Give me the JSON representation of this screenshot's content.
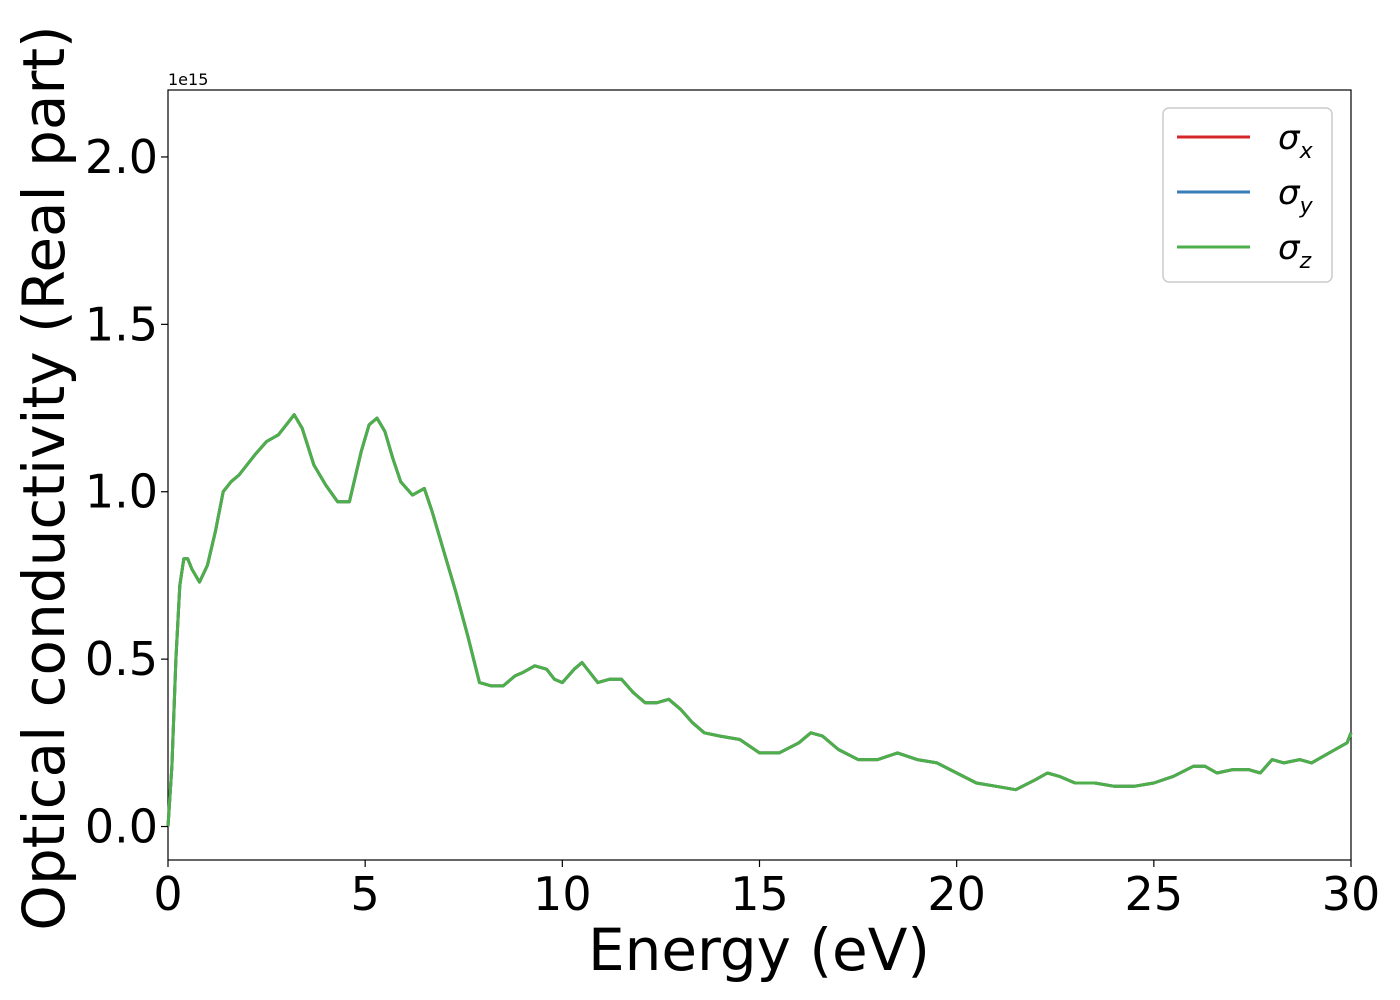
{
  "chart_data": {
    "type": "line",
    "title": "",
    "xlabel": "Energy (eV)",
    "ylabel": "Optical conductivity (Real part)",
    "y_offset_label": "1e15",
    "xlim": [
      0,
      30
    ],
    "ylim": [
      -0.1,
      2.2
    ],
    "x_ticks": [
      0,
      5,
      10,
      15,
      20,
      25,
      30
    ],
    "x_tick_labels": [
      "0",
      "5",
      "10",
      "15",
      "20",
      "25",
      "30"
    ],
    "y_ticks": [
      0.0,
      0.5,
      1.0,
      1.5,
      2.0
    ],
    "y_tick_labels": [
      "0.0",
      "0.5",
      "1.0",
      "1.5",
      "2.0"
    ],
    "grid": false,
    "legend_position": "top-right",
    "x": [
      0,
      0.1,
      0.2,
      0.3,
      0.4,
      0.5,
      0.6,
      0.8,
      1.0,
      1.2,
      1.4,
      1.6,
      1.8,
      2.0,
      2.2,
      2.5,
      2.8,
      3.0,
      3.2,
      3.4,
      3.7,
      4.0,
      4.3,
      4.6,
      4.9,
      5.1,
      5.3,
      5.5,
      5.7,
      5.9,
      6.2,
      6.5,
      6.7,
      7.0,
      7.3,
      7.6,
      7.9,
      8.2,
      8.5,
      8.8,
      9.0,
      9.3,
      9.6,
      9.8,
      10.0,
      10.3,
      10.5,
      10.7,
      10.9,
      11.2,
      11.5,
      11.8,
      12.1,
      12.4,
      12.7,
      13.0,
      13.3,
      13.6,
      14.0,
      14.5,
      15.0,
      15.5,
      16.0,
      16.3,
      16.6,
      17.0,
      17.5,
      18.0,
      18.5,
      19.0,
      19.5,
      20.0,
      20.5,
      21.0,
      21.5,
      22.0,
      22.3,
      22.6,
      23.0,
      23.5,
      24.0,
      24.5,
      25.0,
      25.5,
      26.0,
      26.3,
      26.6,
      27.0,
      27.4,
      27.7,
      28.0,
      28.3,
      28.7,
      29.0,
      29.3,
      29.6,
      29.9,
      30.0
    ],
    "series": [
      {
        "name": "σx",
        "color": "#d62728",
        "values": [
          0.0,
          0.18,
          0.5,
          0.72,
          0.8,
          0.8,
          0.77,
          0.73,
          0.78,
          0.88,
          1.0,
          1.03,
          1.05,
          1.08,
          1.11,
          1.15,
          1.17,
          1.2,
          1.23,
          1.19,
          1.08,
          1.02,
          0.97,
          0.97,
          1.12,
          1.2,
          1.22,
          1.18,
          1.1,
          1.03,
          0.99,
          1.01,
          0.94,
          0.82,
          0.7,
          0.57,
          0.43,
          0.42,
          0.42,
          0.45,
          0.46,
          0.48,
          0.47,
          0.44,
          0.43,
          0.47,
          0.49,
          0.46,
          0.43,
          0.44,
          0.44,
          0.4,
          0.37,
          0.37,
          0.38,
          0.35,
          0.31,
          0.28,
          0.27,
          0.26,
          0.22,
          0.22,
          0.25,
          0.28,
          0.27,
          0.23,
          0.2,
          0.2,
          0.22,
          0.2,
          0.19,
          0.16,
          0.13,
          0.12,
          0.11,
          0.14,
          0.16,
          0.15,
          0.13,
          0.13,
          0.12,
          0.12,
          0.13,
          0.15,
          0.18,
          0.18,
          0.16,
          0.17,
          0.17,
          0.16,
          0.2,
          0.19,
          0.2,
          0.19,
          0.21,
          0.23,
          0.25,
          0.28
        ]
      },
      {
        "name": "σy",
        "color": "#377eb8",
        "values": [
          0.0,
          0.18,
          0.5,
          0.72,
          0.8,
          0.8,
          0.77,
          0.73,
          0.78,
          0.88,
          1.0,
          1.03,
          1.05,
          1.08,
          1.11,
          1.15,
          1.17,
          1.2,
          1.23,
          1.19,
          1.08,
          1.02,
          0.97,
          0.97,
          1.12,
          1.2,
          1.22,
          1.18,
          1.1,
          1.03,
          0.99,
          1.01,
          0.94,
          0.82,
          0.7,
          0.57,
          0.43,
          0.42,
          0.42,
          0.45,
          0.46,
          0.48,
          0.47,
          0.44,
          0.43,
          0.47,
          0.49,
          0.46,
          0.43,
          0.44,
          0.44,
          0.4,
          0.37,
          0.37,
          0.38,
          0.35,
          0.31,
          0.28,
          0.27,
          0.26,
          0.22,
          0.22,
          0.25,
          0.28,
          0.27,
          0.23,
          0.2,
          0.2,
          0.22,
          0.2,
          0.19,
          0.16,
          0.13,
          0.12,
          0.11,
          0.14,
          0.16,
          0.15,
          0.13,
          0.13,
          0.12,
          0.12,
          0.13,
          0.15,
          0.18,
          0.18,
          0.16,
          0.17,
          0.17,
          0.16,
          0.2,
          0.19,
          0.2,
          0.19,
          0.21,
          0.23,
          0.25,
          0.28
        ]
      },
      {
        "name": "σz",
        "color": "#4daf4a",
        "values": [
          0.0,
          0.18,
          0.5,
          0.72,
          0.8,
          0.8,
          0.77,
          0.73,
          0.78,
          0.88,
          1.0,
          1.03,
          1.05,
          1.08,
          1.11,
          1.15,
          1.17,
          1.2,
          1.23,
          1.19,
          1.08,
          1.02,
          0.97,
          0.97,
          1.12,
          1.2,
          1.22,
          1.18,
          1.1,
          1.03,
          0.99,
          1.01,
          0.94,
          0.82,
          0.7,
          0.57,
          0.43,
          0.42,
          0.42,
          0.45,
          0.46,
          0.48,
          0.47,
          0.44,
          0.43,
          0.47,
          0.49,
          0.46,
          0.43,
          0.44,
          0.44,
          0.4,
          0.37,
          0.37,
          0.38,
          0.35,
          0.31,
          0.28,
          0.27,
          0.26,
          0.22,
          0.22,
          0.25,
          0.28,
          0.27,
          0.23,
          0.2,
          0.2,
          0.22,
          0.2,
          0.19,
          0.16,
          0.13,
          0.12,
          0.11,
          0.14,
          0.16,
          0.15,
          0.13,
          0.13,
          0.12,
          0.12,
          0.13,
          0.15,
          0.18,
          0.18,
          0.16,
          0.17,
          0.17,
          0.16,
          0.2,
          0.19,
          0.2,
          0.19,
          0.21,
          0.23,
          0.25,
          0.28
        ]
      }
    ],
    "legend": [
      {
        "symbol": "σ",
        "sub": "x",
        "color": "#d62728"
      },
      {
        "symbol": "σ",
        "sub": "y",
        "color": "#377eb8"
      },
      {
        "symbol": "σ",
        "sub": "z",
        "color": "#4daf4a"
      }
    ]
  }
}
